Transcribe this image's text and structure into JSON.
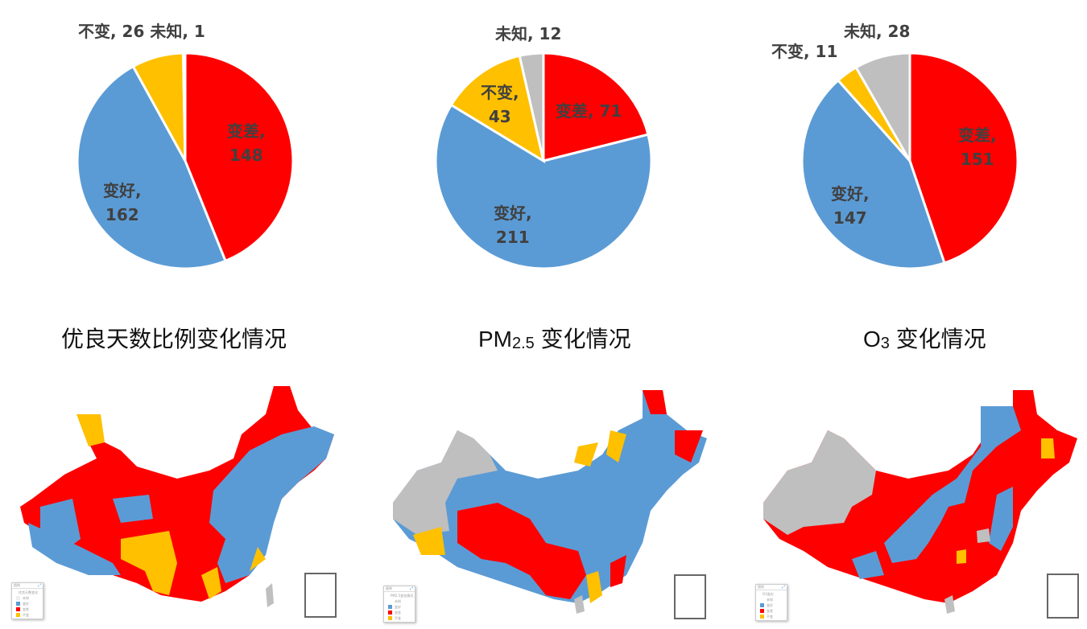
{
  "colors": {
    "worse": "#FF0000",
    "better": "#5B9BD5",
    "same": "#FFC000",
    "unknown": "#BFBFBF",
    "label": "#404040"
  },
  "chart_data": [
    {
      "type": "pie",
      "title": "优良天数比例变化情况",
      "categories": [
        "变差",
        "变好",
        "不变",
        "未知"
      ],
      "values": [
        148,
        162,
        26,
        1
      ],
      "colors": [
        "#FF0000",
        "#5B9BD5",
        "#FFC000",
        "#BFBFBF"
      ],
      "labels": [
        "变差, 148",
        "变好, 162",
        "不变, 26",
        "未知, 1"
      ]
    },
    {
      "type": "pie",
      "title": "PM2.5 变化情况",
      "categories": [
        "变差",
        "变好",
        "不变",
        "未知"
      ],
      "values": [
        71,
        211,
        43,
        12
      ],
      "colors": [
        "#FF0000",
        "#5B9BD5",
        "#FFC000",
        "#BFBFBF"
      ],
      "labels": [
        "变差, 71",
        "变好, 211",
        "不变, 43",
        "未知, 12"
      ]
    },
    {
      "type": "pie",
      "title": "O3 变化情况",
      "categories": [
        "变差",
        "变好",
        "不变",
        "未知"
      ],
      "values": [
        151,
        147,
        11,
        28
      ],
      "colors": [
        "#FF0000",
        "#5B9BD5",
        "#FFC000",
        "#BFBFBF"
      ],
      "labels": [
        "变差, 151",
        "变好, 147",
        "不变, 11",
        "未知, 28"
      ]
    }
  ],
  "panels": [
    {
      "title_main": "优良天数比例变化情况",
      "title_sub": "",
      "title_rest": "",
      "pie_labels": {
        "worse_name": "变差,",
        "worse_value": "148",
        "better_name": "变好,",
        "better_value": "162",
        "same_top": "不变, 26 未知, 1"
      },
      "legend": {
        "header": "图例",
        "title": "优良天数变化",
        "items": [
          "未知",
          "变好",
          "变差",
          "不变"
        ]
      }
    },
    {
      "title_main": "PM",
      "title_sub": "2.5",
      "title_rest": " 变化情况",
      "pie_labels": {
        "worse": "变差, 71",
        "better_name": "变好,",
        "better_value": "211",
        "same_name": "不变,",
        "same_value": "43",
        "unknown": "未知, 12"
      },
      "legend": {
        "header": "图例",
        "title": "PM2.5变化情况",
        "items": [
          "未知",
          "变好",
          "变差",
          "不变"
        ]
      }
    },
    {
      "title_main": "O",
      "title_sub": "3",
      "title_rest": " 变化情况",
      "pie_labels": {
        "worse_name": "变差,",
        "worse_value": "151",
        "better_name": "变好,",
        "better_value": "147",
        "same": "不变, 11",
        "unknown": "未知, 28"
      },
      "legend": {
        "header": "图例",
        "title": "O3变化",
        "items": [
          "未知",
          "变好",
          "变差",
          "不变"
        ]
      }
    }
  ]
}
